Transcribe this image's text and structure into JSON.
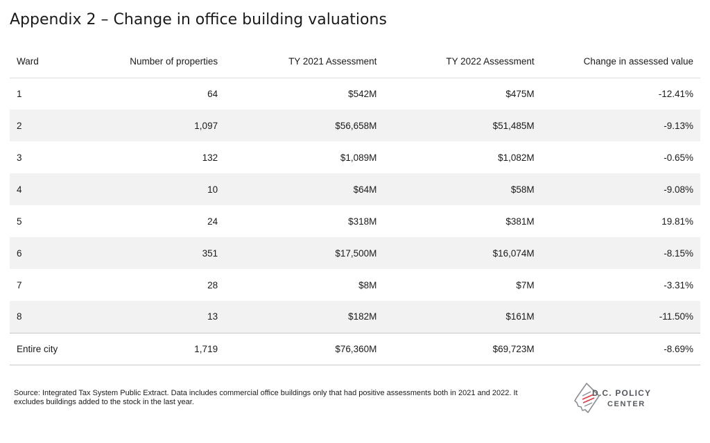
{
  "title": "Appendix 2 – Change in office building valuations",
  "table": {
    "headers": [
      "Ward",
      "Number of properties",
      "TY 2021 Assessment",
      "TY 2022 Assessment",
      "Change in assessed value"
    ],
    "rows": [
      [
        "1",
        "64",
        "$542M",
        "$475M",
        "-12.41%"
      ],
      [
        "2",
        "1,097",
        "$56,658M",
        "$51,485M",
        "-9.13%"
      ],
      [
        "3",
        "132",
        "$1,089M",
        "$1,082M",
        "-0.65%"
      ],
      [
        "4",
        "10",
        "$64M",
        "$58M",
        "-9.08%"
      ],
      [
        "5",
        "24",
        "$318M",
        "$381M",
        "19.81%"
      ],
      [
        "6",
        "351",
        "$17,500M",
        "$16,074M",
        "-8.15%"
      ],
      [
        "7",
        "28",
        "$8M",
        "$7M",
        "-3.31%"
      ],
      [
        "8",
        "13",
        "$182M",
        "$161M",
        "-11.50%"
      ]
    ],
    "total": [
      "Entire city",
      "1,719",
      "$76,360M",
      "$69,723M",
      "-8.69%"
    ]
  },
  "footnote": "Source: Integrated Tax System Public Extract. Data includes commercial office buildings only that had positive assessments both in 2021 and 2022. It excludes buildings added to the stock in the last year.",
  "logo": {
    "line1": "D.C. POLICY",
    "line2": "CENTER",
    "icon": "dc-map-logo-icon",
    "colors": {
      "text": "#555a60",
      "outline": "#8a8f95",
      "accent": "#e03a3e"
    }
  }
}
